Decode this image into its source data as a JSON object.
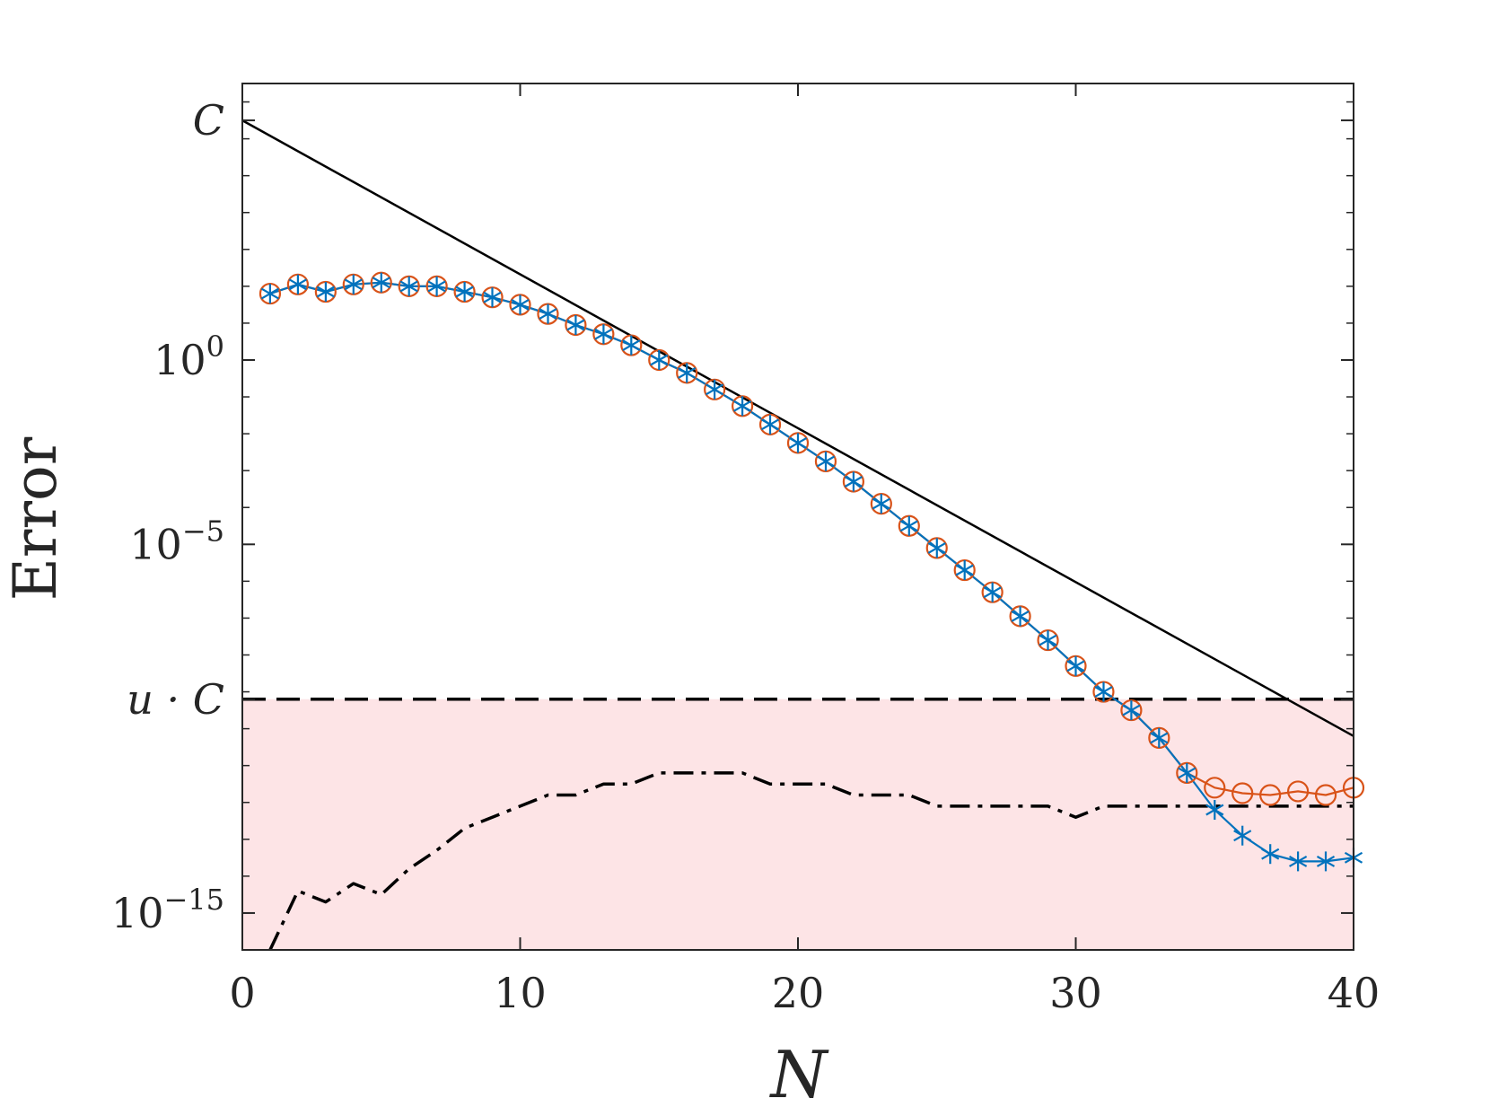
{
  "chart_data": {
    "type": "line",
    "xlabel": "N",
    "ylabel": "Error",
    "xlim": [
      0,
      40
    ],
    "ylim_log10": [
      -16,
      7.5
    ],
    "y_scale": "log",
    "grid": false,
    "x_ticks": [
      0,
      10,
      20,
      30,
      40
    ],
    "y_ticks": [
      {
        "value_log10": 6.5,
        "label": "C"
      },
      {
        "value_log10": 0,
        "base": "10",
        "exp": "0"
      },
      {
        "value_log10": -5,
        "base": "10",
        "exp": "−5"
      },
      {
        "value_log10": -9.2,
        "label": "u · C"
      },
      {
        "value_log10": -15,
        "base": "10",
        "exp": "−15"
      }
    ],
    "shaded_region": {
      "y_from_log10": -16,
      "y_to_log10": -9.2,
      "color": "#fde4e6"
    },
    "series": [
      {
        "style": "solid-black",
        "color": "#000000",
        "x": [
          0,
          40
        ],
        "y_log10": [
          6.5,
          -10.2
        ]
      },
      {
        "style": "dashed-black",
        "color": "#000000",
        "x": [
          0,
          40
        ],
        "y_log10": [
          -9.2,
          -9.2
        ]
      },
      {
        "style": "dashdot-black",
        "color": "#000000",
        "x": [
          1,
          2,
          3,
          4,
          5,
          6,
          7,
          8,
          9,
          10,
          11,
          12,
          13,
          14,
          15,
          16,
          17,
          18,
          19,
          20,
          21,
          22,
          23,
          24,
          25,
          26,
          27,
          28,
          29,
          30,
          31,
          32,
          33,
          34,
          35,
          36,
          37,
          38,
          39,
          40
        ],
        "y_log10": [
          -16.0,
          -14.4,
          -14.7,
          -14.2,
          -14.5,
          -13.8,
          -13.3,
          -12.7,
          -12.4,
          -12.1,
          -11.8,
          -11.8,
          -11.5,
          -11.5,
          -11.2,
          -11.2,
          -11.2,
          -11.2,
          -11.5,
          -11.5,
          -11.5,
          -11.8,
          -11.8,
          -11.8,
          -12.1,
          -12.1,
          -12.1,
          -12.1,
          -12.1,
          -12.4,
          -12.1,
          -12.1,
          -12.1,
          -12.1,
          -12.1,
          -12.1,
          -12.1,
          -12.1,
          -12.1,
          -12.1
        ]
      },
      {
        "style": "orange-circles",
        "color": "#d95319",
        "x": [
          1,
          2,
          3,
          4,
          5,
          6,
          7,
          8,
          9,
          10,
          11,
          12,
          13,
          14,
          15,
          16,
          17,
          18,
          19,
          20,
          21,
          22,
          23,
          24,
          25,
          26,
          27,
          28,
          29,
          30,
          31,
          32,
          33,
          34,
          35,
          36,
          37,
          38,
          39,
          40
        ],
        "y_log10": [
          1.8,
          2.05,
          1.85,
          2.05,
          2.1,
          2.0,
          2.0,
          1.85,
          1.7,
          1.5,
          1.25,
          0.95,
          0.7,
          0.4,
          0.0,
          -0.35,
          -0.8,
          -1.25,
          -1.75,
          -2.25,
          -2.75,
          -3.3,
          -3.9,
          -4.5,
          -5.1,
          -5.7,
          -6.3,
          -6.95,
          -7.6,
          -8.3,
          -9.0,
          -9.5,
          -10.25,
          -11.2,
          -11.6,
          -11.75,
          -11.8,
          -11.7,
          -11.8,
          -11.6
        ]
      },
      {
        "style": "blue-stars",
        "color": "#0072bd",
        "x": [
          1,
          2,
          3,
          4,
          5,
          6,
          7,
          8,
          9,
          10,
          11,
          12,
          13,
          14,
          15,
          16,
          17,
          18,
          19,
          20,
          21,
          22,
          23,
          24,
          25,
          26,
          27,
          28,
          29,
          30,
          31,
          32,
          33,
          34,
          35,
          36,
          37,
          38,
          39,
          40
        ],
        "y_log10": [
          1.8,
          2.05,
          1.85,
          2.05,
          2.1,
          2.0,
          2.0,
          1.85,
          1.7,
          1.5,
          1.25,
          0.95,
          0.7,
          0.4,
          0.0,
          -0.35,
          -0.8,
          -1.25,
          -1.75,
          -2.25,
          -2.75,
          -3.3,
          -3.9,
          -4.5,
          -5.1,
          -5.7,
          -6.3,
          -6.95,
          -7.6,
          -8.3,
          -9.0,
          -9.5,
          -10.25,
          -11.2,
          -12.2,
          -12.9,
          -13.4,
          -13.6,
          -13.6,
          -13.5
        ]
      }
    ]
  }
}
